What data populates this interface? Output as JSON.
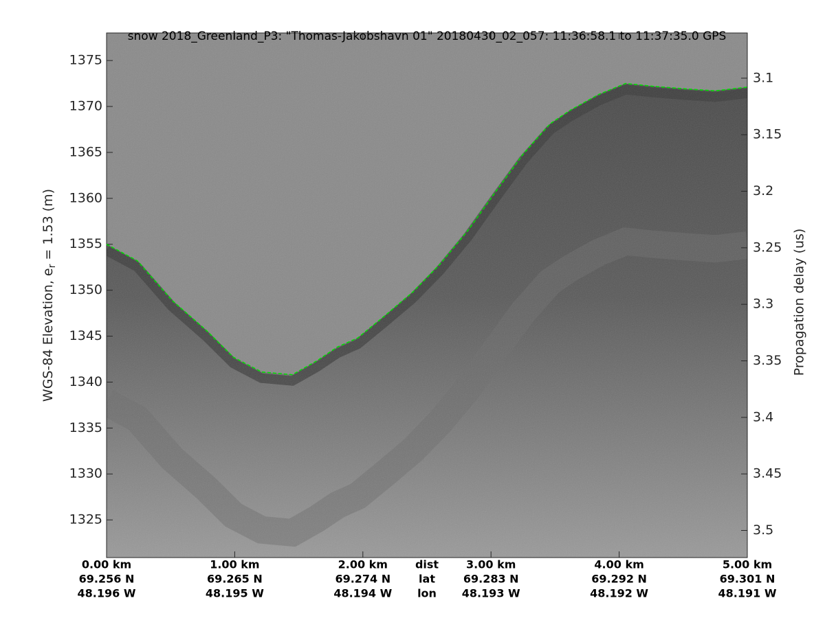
{
  "chart_data": {
    "type": "line",
    "title": "snow 2018_Greenland_P3: \"Thomas-Jakobshavn 01\"  20180430_02_057: 11:36:58.1 to 11:37:35.0 GPS",
    "ylabel": {
      "prefix": "WGS-84 Elevation, e",
      "subscript": "r",
      "suffix": " = 1.53 (m)"
    },
    "y2label": "Propagation delay (us)",
    "xlim": [
      0,
      5
    ],
    "xticks": [
      {
        "value": 0,
        "label": "0.00 km"
      },
      {
        "value": 1,
        "label": "1.00 km"
      },
      {
        "value": 2,
        "label": "2.00 km"
      },
      {
        "value": 3,
        "label": "3.00 km"
      },
      {
        "value": 4,
        "label": "4.00 km"
      },
      {
        "value": 5,
        "label": "5.00 km"
      }
    ],
    "lat_labels": [
      "69.256 N",
      "69.265 N",
      "69.274 N",
      "69.283 N",
      "69.292 N",
      "69.301 N"
    ],
    "lon_labels": [
      "48.196 W",
      "48.195 W",
      "48.194 W",
      "48.193 W",
      "48.192 W",
      "48.191 W"
    ],
    "row_labels": [
      "dist",
      "lat",
      "lon"
    ],
    "ylim": [
      1320.9,
      1378.0
    ],
    "yticks": [
      1325,
      1330,
      1335,
      1340,
      1345,
      1350,
      1355,
      1360,
      1365,
      1370,
      1375
    ],
    "y2lim": [
      3.06,
      3.524
    ],
    "y2ticks": [
      3.1,
      3.15,
      3.2,
      3.25,
      3.3,
      3.35,
      3.4,
      3.45,
      3.5
    ],
    "x": [
      0,
      0.24,
      0.51,
      0.78,
      0.99,
      1.21,
      1.45,
      1.64,
      1.8,
      1.96,
      2.17,
      2.39,
      2.6,
      2.82,
      3.03,
      3.25,
      3.46,
      3.62,
      3.84,
      4.05,
      4.26,
      4.53,
      4.75,
      5.0
    ],
    "series": [
      {
        "color": "#00dd00",
        "values": [
          1355.0,
          1353.2,
          1348.9,
          1345.6,
          1342.7,
          1341.1,
          1340.8,
          1342.3,
          1343.8,
          1344.8,
          1347.2,
          1349.8,
          1352.8,
          1356.5,
          1360.6,
          1364.8,
          1368.1,
          1369.6,
          1371.3,
          1372.5,
          1372.2,
          1371.9,
          1371.7,
          1372.1
        ]
      }
    ]
  }
}
